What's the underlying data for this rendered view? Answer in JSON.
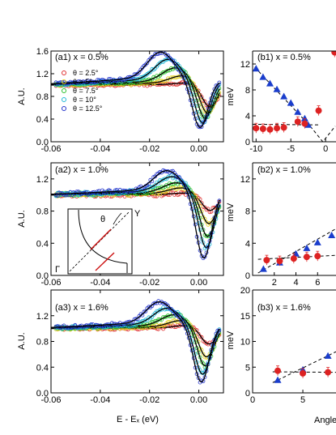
{
  "chart_data": [
    {
      "type": "scatter",
      "panel_label": "(a1) x = 0.5%",
      "ylabel": "A.U.",
      "xlim": [
        -0.06,
        0.01
      ],
      "ylim": [
        0.0,
        1.6
      ],
      "xticks": [
        "-0.06",
        "-0.04",
        "-0.02",
        "0.00"
      ],
      "yticks": [
        "0.0",
        "0.4",
        "0.8",
        "1.2",
        "1.6"
      ],
      "legend": [
        "θ = 2.5°",
        "θ = 5°",
        "θ = 7.5°",
        "θ = 10°",
        "θ = 12.5°"
      ],
      "legend_colors": [
        "#e03030",
        "#e6d21e",
        "#2bbf2b",
        "#20b8d8",
        "#2233cc"
      ],
      "curves": [
        {
          "name": "θ = 2.5°",
          "color": "#e03030",
          "peak_x": -0.0045,
          "peak_y": 1.03,
          "dip_x": 0.0045,
          "dip_y": 0.6
        },
        {
          "name": "θ = 5°",
          "color": "#e6d21e",
          "peak_x": -0.0065,
          "peak_y": 1.13,
          "dip_x": 0.0035,
          "dip_y": 0.45
        },
        {
          "name": "θ = 7.5°",
          "color": "#2bbf2b",
          "peak_x": -0.0095,
          "peak_y": 1.24,
          "dip_x": 0.0025,
          "dip_y": 0.34
        },
        {
          "name": "θ = 10°",
          "color": "#20b8d8",
          "peak_x": -0.0125,
          "peak_y": 1.36,
          "dip_x": 0.0015,
          "dip_y": 0.24
        },
        {
          "name": "θ = 12.5°",
          "color": "#2233cc",
          "peak_x": -0.0155,
          "peak_y": 1.46,
          "dip_x": 0.0005,
          "dip_y": 0.15
        }
      ]
    },
    {
      "type": "scatter",
      "panel_label": "(a2) x = 1.0%",
      "ylabel": "A.U.",
      "xlim": [
        -0.06,
        0.01
      ],
      "ylim": [
        0.0,
        1.4
      ],
      "xticks": [
        "-0.06",
        "-0.04",
        "-0.02",
        "0.00"
      ],
      "yticks": [
        "0.0",
        "0.4",
        "0.8",
        "1.2"
      ],
      "inset": {
        "theta_label": "θ",
        "gamma_label": "Γ",
        "y_label": "Y"
      },
      "curves": [
        {
          "name": "θ = 2.5°",
          "color": "#e03030",
          "peak_x": -0.005,
          "peak_y": 1.02,
          "dip_x": 0.0045,
          "dip_y": 0.8
        },
        {
          "name": "θ = 5°",
          "color": "#e6d21e",
          "peak_x": -0.007,
          "peak_y": 1.07,
          "dip_x": 0.004,
          "dip_y": 0.62
        },
        {
          "name": "θ = 7.5°",
          "color": "#2bbf2b",
          "peak_x": -0.009,
          "peak_y": 1.12,
          "dip_x": 0.0035,
          "dip_y": 0.45
        },
        {
          "name": "θ = 10°",
          "color": "#20b8d8",
          "peak_x": -0.011,
          "peak_y": 1.18,
          "dip_x": 0.003,
          "dip_y": 0.3
        },
        {
          "name": "θ = 12.5°",
          "color": "#2233cc",
          "peak_x": -0.013,
          "peak_y": 1.24,
          "dip_x": 0.002,
          "dip_y": 0.16
        }
      ]
    },
    {
      "type": "scatter",
      "panel_label": "(a3) x = 1.6%",
      "ylabel": "A.U.",
      "xlabel": "E - Eₓ (eV)",
      "xlim": [
        -0.06,
        0.01
      ],
      "ylim": [
        0.0,
        1.6
      ],
      "xticks": [
        "-0.06",
        "-0.04",
        "-0.02",
        "0.00"
      ],
      "yticks": [
        "0.0",
        "0.4",
        "0.8",
        "1.2"
      ],
      "curves": [
        {
          "name": "θ = 2.5°",
          "color": "#e03030",
          "peak_x": -0.0045,
          "peak_y": 1.04,
          "dip_x": 0.004,
          "dip_y": 0.74
        },
        {
          "name": "θ = 5°",
          "color": "#e6d21e",
          "peak_x": -0.007,
          "peak_y": 1.1,
          "dip_x": 0.003,
          "dip_y": 0.52
        },
        {
          "name": "θ = 7.5°",
          "color": "#2bbf2b",
          "peak_x": -0.01,
          "peak_y": 1.17,
          "dip_x": 0.0025,
          "dip_y": 0.37
        },
        {
          "name": "θ = 10°",
          "color": "#20b8d8",
          "peak_x": -0.013,
          "peak_y": 1.25,
          "dip_x": 0.0015,
          "dip_y": 0.23
        },
        {
          "name": "θ = 12.5°",
          "color": "#2233cc",
          "peak_x": -0.016,
          "peak_y": 1.33,
          "dip_x": 0.001,
          "dip_y": 0.1
        }
      ]
    },
    {
      "type": "scatter",
      "panel_label": "(b1) x = 0.5%",
      "ylabel": "meV",
      "xlim": [
        -10.5,
        1.5
      ],
      "ylim": [
        0,
        14
      ],
      "xticks": [
        "-10",
        "-5",
        "0"
      ],
      "yticks": [
        "0",
        "4",
        "8",
        "12"
      ],
      "series": [
        {
          "name": "",
          "marker": "triangle",
          "color": "#1a3dcc",
          "x": [
            -10,
            -9,
            -8,
            -7,
            -6,
            -5,
            -4,
            -3,
            -2.5
          ],
          "y": [
            11.3,
            10.0,
            9.0,
            8.1,
            7.0,
            6.0,
            4.6,
            3.6,
            2.6
          ]
        },
        {
          "name": "",
          "marker": "circle",
          "color": "#dd2222",
          "x": [
            -10,
            -9,
            -8,
            -7,
            -6,
            -4,
            -3,
            -1,
            1.3
          ],
          "y": [
            2.1,
            2.0,
            1.9,
            2.1,
            2.2,
            3.1,
            2.8,
            4.8,
            13.8
          ]
        }
      ],
      "fit_lines": [
        [
          [
            -10.2,
            11.5
          ],
          [
            -2.2,
            2.4
          ]
        ],
        [
          [
            -10.5,
            2.7
          ],
          [
            -0.8,
            2.6
          ]
        ],
        [
          [
            -2.2,
            2.4
          ],
          [
            -0.4,
            0.0
          ],
          [
            1.4,
            2.4
          ]
        ]
      ]
    },
    {
      "type": "scatter",
      "panel_label": "(b2) x = 1.0%",
      "ylabel": "meV",
      "xlim": [
        0,
        7.7
      ],
      "ylim": [
        0,
        14
      ],
      "xticks": [
        "2",
        "4",
        "6"
      ],
      "yticks": [
        "0",
        "4",
        "8",
        "12"
      ],
      "series": [
        {
          "name": "",
          "marker": "triangle",
          "color": "#1a3dcc",
          "x": [
            1.0,
            2.5,
            4.0,
            5.0,
            6.0,
            7.3
          ],
          "y": [
            0.8,
            1.6,
            2.7,
            3.4,
            4.1,
            5.0
          ]
        },
        {
          "name": "",
          "marker": "circle",
          "color": "#dd2222",
          "x": [
            1.3,
            2.5,
            3.8,
            5.0,
            6.0
          ],
          "y": [
            1.9,
            1.8,
            2.1,
            2.3,
            2.4
          ]
        }
      ],
      "fit_lines": [
        [
          [
            0.5,
            0.3
          ],
          [
            7.7,
            5.8
          ]
        ],
        [
          [
            0.5,
            2.0
          ],
          [
            7.7,
            2.5
          ]
        ]
      ]
    },
    {
      "type": "scatter",
      "panel_label": "(b3) x = 1.6%",
      "ylabel": "meV",
      "xlabel": "Angle",
      "xlim": [
        0,
        8.3
      ],
      "ylim": [
        0,
        20
      ],
      "xticks": [
        "0",
        "5"
      ],
      "yticks": [
        "0",
        "5",
        "10",
        "15",
        "20"
      ],
      "series": [
        {
          "name": "",
          "marker": "triangle",
          "color": "#1a3dcc",
          "x": [
            2.5,
            5.0,
            7.5
          ],
          "y": [
            2.5,
            4.5,
            7.2
          ]
        },
        {
          "name": "",
          "marker": "circle",
          "color": "#dd2222",
          "x": [
            2.5,
            5.0,
            7.5
          ],
          "y": [
            4.3,
            3.8,
            4.0
          ]
        }
      ],
      "fit_lines": [
        [
          [
            2.0,
            2.0
          ],
          [
            8.3,
            8.0
          ]
        ],
        [
          [
            2.0,
            4.1
          ],
          [
            8.3,
            4.0
          ]
        ]
      ]
    }
  ]
}
